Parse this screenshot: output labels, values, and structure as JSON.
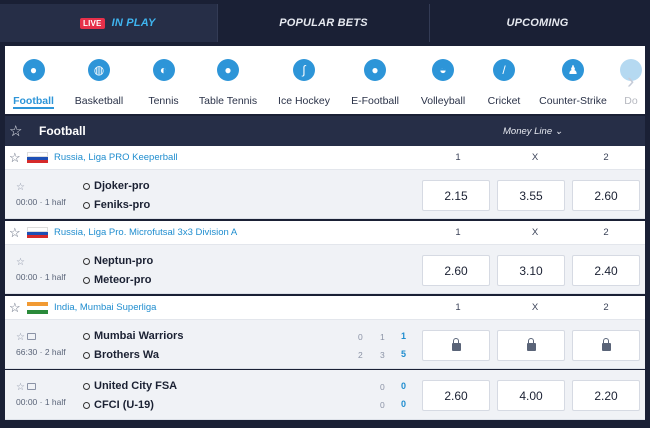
{
  "top_tabs": {
    "live_badge": "LIVE",
    "in_play": "IN PLAY",
    "popular": "POPULAR BETS",
    "upcoming": "UPCOMING"
  },
  "sports": [
    {
      "label": "Football",
      "icon": "football-icon"
    },
    {
      "label": "Basketball",
      "icon": "basketball-icon"
    },
    {
      "label": "Tennis",
      "icon": "tennis-icon"
    },
    {
      "label": "Table Tennis",
      "icon": "table-tennis-icon"
    },
    {
      "label": "Ice Hockey",
      "icon": "ice-hockey-icon"
    },
    {
      "label": "E-Football",
      "icon": "e-football-icon"
    },
    {
      "label": "Volleyball",
      "icon": "volleyball-icon"
    },
    {
      "label": "Cricket",
      "icon": "cricket-icon"
    },
    {
      "label": "Counter-Strike",
      "icon": "counter-strike-icon"
    },
    {
      "label": "Do",
      "icon": "dota-icon"
    }
  ],
  "header": {
    "title": "Football",
    "market": "Money Line"
  },
  "leagues": [
    {
      "name": "Russia, Liga PRO Keeperball",
      "col1": "1",
      "colx": "X",
      "col2": "2",
      "match": {
        "time": "00:00 · 1 half",
        "team1": "Djoker-pro",
        "team2": "Feniks-pro",
        "odd1": "2.15",
        "oddx": "3.55",
        "odd2": "2.60"
      }
    },
    {
      "name": "Russia, Liga Pro. Microfutsal 3x3 Division A",
      "col1": "1",
      "colx": "X",
      "col2": "2",
      "match": {
        "time": "00:00 · 1 half",
        "team1": "Neptun-pro",
        "team2": "Meteor-pro",
        "odd1": "2.60",
        "oddx": "3.10",
        "odd2": "2.40"
      }
    },
    {
      "name": "India, Mumbai Superliga",
      "col1": "1",
      "colx": "X",
      "col2": "2",
      "matches": [
        {
          "time": "66:30 · 2 half",
          "team1": "Mumbai Warriors",
          "team2": "Brothers Wa",
          "s1a": "0",
          "s1b": "1",
          "s1t": "1",
          "s2a": "2",
          "s2b": "3",
          "s2t": "5"
        },
        {
          "time": "00:00 · 1 half",
          "team1": "United City FSA",
          "team2": "CFCI (U-19)",
          "s1a": "0",
          "s1t": "0",
          "s2a": "0",
          "s2t": "0",
          "odd1": "2.60",
          "oddx": "4.00",
          "odd2": "2.20"
        }
      ]
    }
  ],
  "colors": {
    "accent": "#2d95d8",
    "live": "#e6304a",
    "header_bg": "#262e47"
  }
}
